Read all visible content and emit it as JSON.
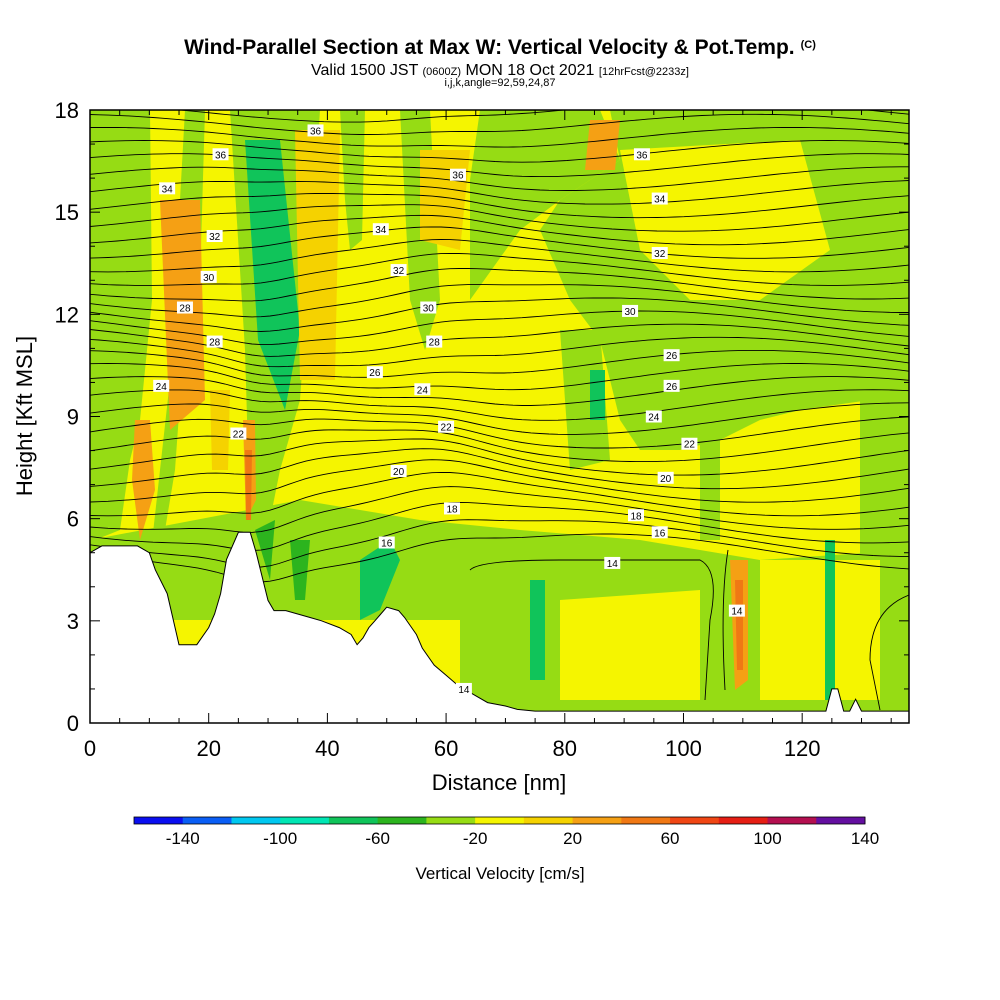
{
  "header": {
    "title": "Wind-Parallel Section at Max W: Vertical Velocity & Pot.Temp.",
    "title_tag": "(C)",
    "valid_prefix": "Valid 1500 JST",
    "valid_utc": "(0600Z)",
    "valid_date": "MON 18 Oct 2021",
    "forecast": "[12hrFcst@2233z]",
    "params": "i,j,k,angle=92,59,24,87"
  },
  "colorbar": {
    "label": "Vertical Velocity [cm/s]",
    "tick_labels": [
      "-140",
      "-100",
      "-60",
      "-20",
      "20",
      "60",
      "100",
      "140"
    ],
    "colors": [
      "#0a0ef0",
      "#0a5ef5",
      "#00c8f0",
      "#00e6b4",
      "#10c45a",
      "#2cb41e",
      "#96dc14",
      "#f5f500",
      "#f5d200",
      "#f5a014",
      "#f07814",
      "#f04614",
      "#e61e14",
      "#b40f50",
      "#640fa0"
    ]
  },
  "chart_data": {
    "type": "heatmap",
    "title": "Wind-Parallel Section at Max W: Vertical Velocity & Pot.Temp.",
    "xlabel": "Distance [nm]",
    "ylabel": "Height [Kft MSL]",
    "xlim": [
      0,
      138
    ],
    "ylim": [
      0,
      18
    ],
    "x_ticks": [
      0,
      20,
      40,
      60,
      80,
      100,
      120
    ],
    "y_ticks": [
      0,
      3,
      6,
      9,
      12,
      15,
      18
    ],
    "x_tick_labels": [
      "0",
      "20",
      "40",
      "60",
      "80",
      "100",
      "120"
    ],
    "y_tick_labels": [
      "0",
      "3",
      "6",
      "9",
      "12",
      "15",
      "18"
    ],
    "fill_variable": "Vertical Velocity [cm/s]",
    "contour_variable": "Potential Temperature (C)",
    "contour_labels": [
      {
        "text": "36",
        "x": 38,
        "y": 17.4
      },
      {
        "text": "36",
        "x": 22,
        "y": 16.7
      },
      {
        "text": "36",
        "x": 62,
        "y": 16.1
      },
      {
        "text": "36",
        "x": 93,
        "y": 16.7
      },
      {
        "text": "34",
        "x": 13,
        "y": 15.7
      },
      {
        "text": "34",
        "x": 49,
        "y": 14.5
      },
      {
        "text": "34",
        "x": 96,
        "y": 15.4
      },
      {
        "text": "32",
        "x": 21,
        "y": 14.3
      },
      {
        "text": "32",
        "x": 52,
        "y": 13.3
      },
      {
        "text": "32",
        "x": 96,
        "y": 13.8
      },
      {
        "text": "30",
        "x": 20,
        "y": 13.1
      },
      {
        "text": "30",
        "x": 57,
        "y": 12.2
      },
      {
        "text": "30",
        "x": 91,
        "y": 12.1
      },
      {
        "text": "28",
        "x": 16,
        "y": 12.2
      },
      {
        "text": "28",
        "x": 21,
        "y": 11.2
      },
      {
        "text": "28",
        "x": 58,
        "y": 11.2
      },
      {
        "text": "26",
        "x": 48,
        "y": 10.3
      },
      {
        "text": "26",
        "x": 98,
        "y": 10.8
      },
      {
        "text": "26",
        "x": 98,
        "y": 9.9
      },
      {
        "text": "24",
        "x": 12,
        "y": 9.9
      },
      {
        "text": "24",
        "x": 56,
        "y": 9.8
      },
      {
        "text": "24",
        "x": 95,
        "y": 9.0
      },
      {
        "text": "22",
        "x": 25,
        "y": 8.5
      },
      {
        "text": "22",
        "x": 60,
        "y": 8.7
      },
      {
        "text": "22",
        "x": 101,
        "y": 8.2
      },
      {
        "text": "20",
        "x": 52,
        "y": 7.4
      },
      {
        "text": "20",
        "x": 97,
        "y": 7.2
      },
      {
        "text": "18",
        "x": 61,
        "y": 6.3
      },
      {
        "text": "18",
        "x": 92,
        "y": 6.1
      },
      {
        "text": "16",
        "x": 50,
        "y": 5.3
      },
      {
        "text": "16",
        "x": 96,
        "y": 5.6
      },
      {
        "text": "14",
        "x": 88,
        "y": 4.7
      },
      {
        "text": "14",
        "x": 109,
        "y": 3.3
      },
      {
        "text": "14",
        "x": 63,
        "y": 1.0
      }
    ],
    "terrain_profile": {
      "x": [
        0,
        2,
        8,
        10,
        11,
        13,
        15,
        17,
        18,
        20,
        21,
        22,
        23,
        25,
        26,
        27,
        28,
        29,
        30,
        31,
        32,
        33,
        35,
        37,
        39,
        42,
        44,
        45,
        46,
        47,
        48,
        49,
        50,
        52,
        53,
        55,
        56,
        58,
        60,
        62,
        65,
        67,
        70,
        72,
        75,
        80,
        100,
        106,
        108,
        110,
        122,
        124,
        125,
        126,
        127,
        128,
        129,
        130,
        131,
        132,
        138
      ],
      "height": [
        5.0,
        5.2,
        5.2,
        5.0,
        4.5,
        3.8,
        2.3,
        2.3,
        2.3,
        2.8,
        3.2,
        3.8,
        4.8,
        5.6,
        5.6,
        5.6,
        5.0,
        4.3,
        3.6,
        3.3,
        3.3,
        3.3,
        3.2,
        3.1,
        3.0,
        2.8,
        2.6,
        2.3,
        2.5,
        2.8,
        3.0,
        3.2,
        3.4,
        3.3,
        3.1,
        2.6,
        2.2,
        1.7,
        1.4,
        1.1,
        0.8,
        0.6,
        0.5,
        0.4,
        0.35,
        0.35,
        0.35,
        0.35,
        0.35,
        0.35,
        0.35,
        0.35,
        1.0,
        1.0,
        0.35,
        0.35,
        0.7,
        0.35,
        0.35,
        0.35,
        0.35
      ]
    }
  }
}
